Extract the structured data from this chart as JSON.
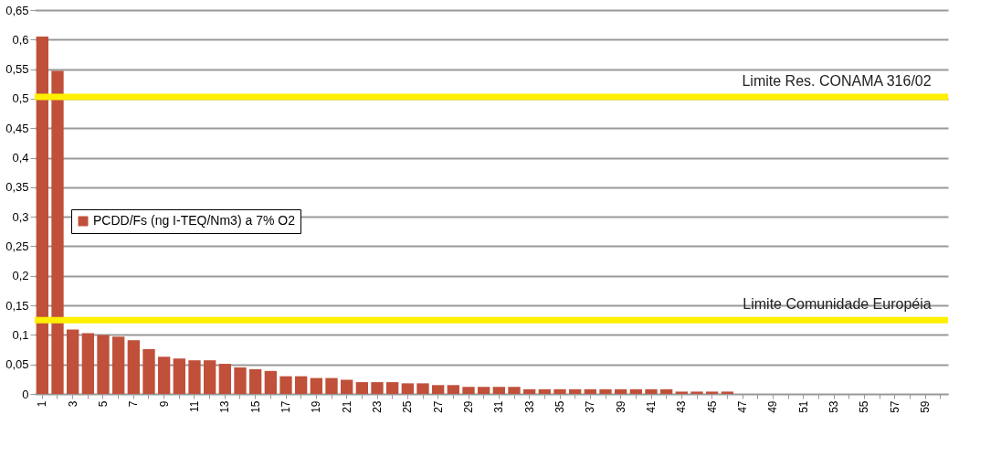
{
  "chart_data": {
    "type": "bar",
    "categories": [
      "1",
      null,
      "3",
      null,
      "5",
      null,
      "7",
      null,
      "9",
      null,
      "11",
      null,
      "13",
      null,
      "15",
      null,
      "17",
      null,
      "19",
      null,
      "21",
      null,
      "23",
      null,
      "25",
      null,
      "27",
      null,
      "29",
      null,
      "31",
      null,
      "33",
      null,
      "35",
      null,
      "37",
      null,
      "39",
      null,
      "41",
      null,
      "43",
      null,
      "45",
      null,
      "47",
      null,
      "49",
      null,
      "51",
      null,
      "53",
      null,
      "55",
      null,
      "57",
      null,
      "59",
      null
    ],
    "series": [
      {
        "name": "PCDD/Fs (ng I-TEQ/Nm3) a 7% O2",
        "color": "#c0503a",
        "values": [
          0.605,
          0.547,
          0.109,
          0.103,
          0.1,
          0.097,
          0.091,
          0.076,
          0.063,
          0.06,
          0.057,
          0.057,
          0.051,
          0.045,
          0.042,
          0.039,
          0.03,
          0.03,
          0.027,
          0.027,
          0.024,
          0.02,
          0.02,
          0.02,
          0.018,
          0.018,
          0.015,
          0.015,
          0.012,
          0.012,
          0.012,
          0.012,
          0.008,
          0.008,
          0.008,
          0.008,
          0.008,
          0.008,
          0.008,
          0.008,
          0.008,
          0.008,
          0.004,
          0.004,
          0.004,
          0.004,
          0,
          0,
          0,
          0,
          0,
          0,
          0,
          0,
          0,
          0,
          0,
          0,
          0,
          0
        ]
      }
    ],
    "ylim": [
      0,
      0.65
    ],
    "yticks": [
      {
        "value": 0,
        "label": "0"
      },
      {
        "value": 0.05,
        "label": "0,05"
      },
      {
        "value": 0.1,
        "label": "0,1"
      },
      {
        "value": 0.15,
        "label": "0,15"
      },
      {
        "value": 0.2,
        "label": "0,2"
      },
      {
        "value": 0.25,
        "label": "0,25"
      },
      {
        "value": 0.3,
        "label": "0,3"
      },
      {
        "value": 0.35,
        "label": "0,35"
      },
      {
        "value": 0.4,
        "label": "0,4"
      },
      {
        "value": 0.45,
        "label": "0,45"
      },
      {
        "value": 0.5,
        "label": "0,5"
      },
      {
        "value": 0.55,
        "label": "0,55"
      },
      {
        "value": 0.6,
        "label": "0,6"
      },
      {
        "value": 0.65,
        "label": "0,65"
      }
    ],
    "ref_lines": [
      {
        "axis": "y",
        "value": 0.503,
        "label": "Limite Res. CONAMA 316/02",
        "color": "#ffef00"
      },
      {
        "axis": "y",
        "value": 0.125,
        "label": "Limite Comunidade  Européia",
        "color": "#ffef00"
      }
    ],
    "grid": "y",
    "legend": "left"
  }
}
